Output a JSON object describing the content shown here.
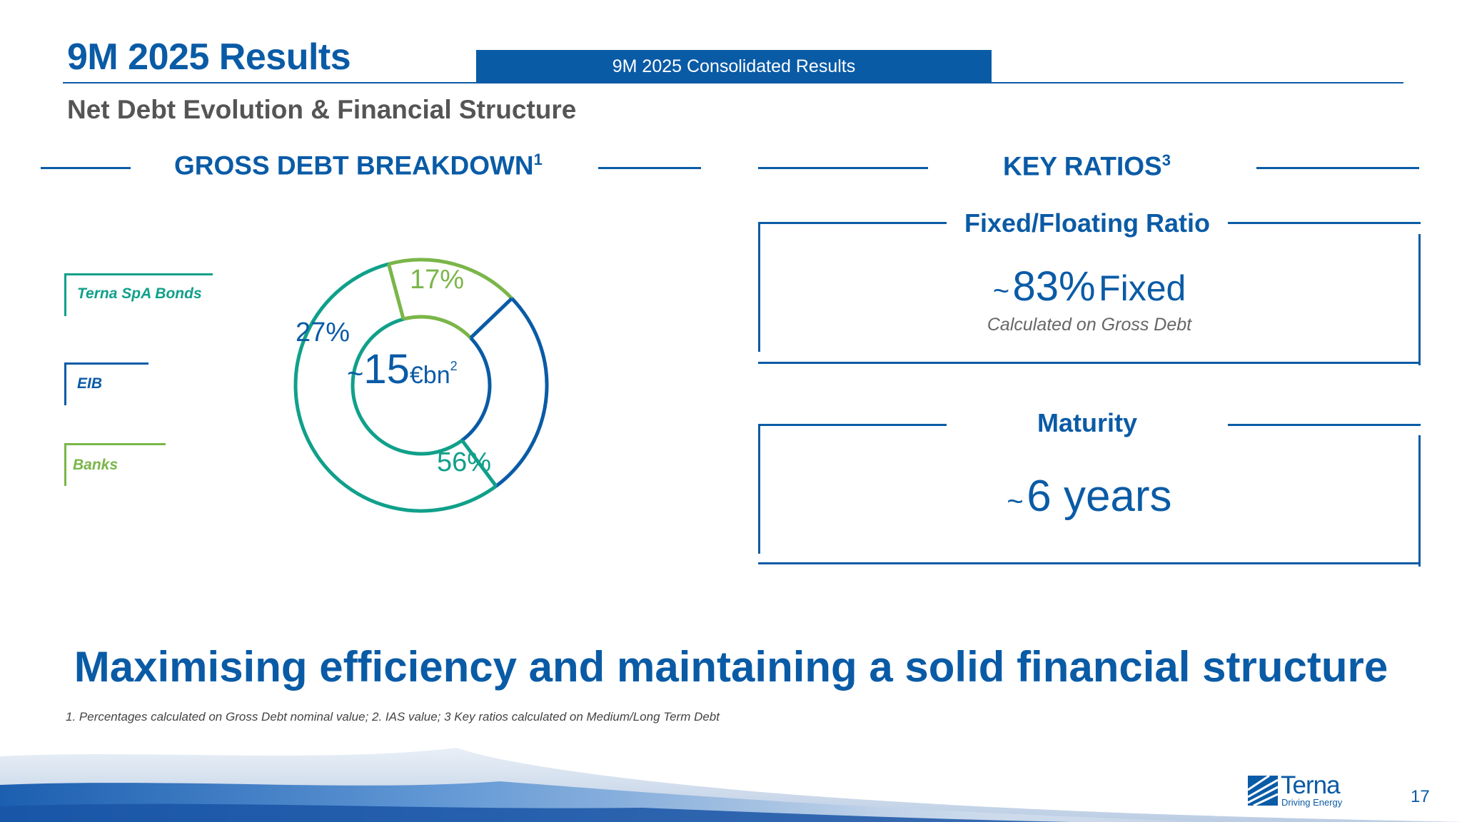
{
  "header": {
    "title": "9M 2025 Results",
    "tab_label": "9M 2025 Consolidated Results",
    "subtitle": "Net Debt Evolution & Financial Structure"
  },
  "gross_debt": {
    "heading": "GROSS DEBT BREAKDOWN",
    "heading_sup": "1",
    "center_prefix": "~",
    "center_value": "15",
    "center_unit": "€bn",
    "center_sup": "2"
  },
  "chart_data": {
    "type": "pie",
    "title": "GROSS DEBT BREAKDOWN",
    "categories": [
      "Banks",
      "EIB",
      "Terna SpA Bonds"
    ],
    "values": [
      17,
      27,
      56
    ],
    "labels": [
      "17%",
      "27%",
      "56%"
    ],
    "colors": [
      "#7ab648",
      "#0a5ba6",
      "#10a08a"
    ],
    "legend": [
      "Terna SpA Bonds",
      "EIB",
      "Banks"
    ],
    "legend_colors": [
      "#10a08a",
      "#0a5ba6",
      "#7ab648"
    ],
    "legend_placement": "left",
    "donut": true,
    "center_label": "~15€bn"
  },
  "key_ratios": {
    "heading": "KEY RATIOS",
    "heading_sup": "3",
    "fixed_floating": {
      "title": "Fixed/Floating Ratio",
      "prefix": "~",
      "value": "83",
      "unit": "%",
      "suffix": "Fixed",
      "note": "Calculated on Gross Debt"
    },
    "maturity": {
      "title": "Maturity",
      "prefix": "~",
      "value": "6 years"
    }
  },
  "tagline": "Maximising efficiency and maintaining a solid financial structure",
  "footnote": "1. Percentages calculated on Gross Debt nominal value; 2. IAS value; 3 Key ratios calculated on Medium/Long Term Debt",
  "logo": {
    "name": "Terna",
    "tagline": "Driving Energy"
  },
  "page_number": "17",
  "colors": {
    "navy": "#0a5ba6",
    "teal": "#10a08a",
    "green": "#7ab648",
    "grey_text": "#555555"
  }
}
